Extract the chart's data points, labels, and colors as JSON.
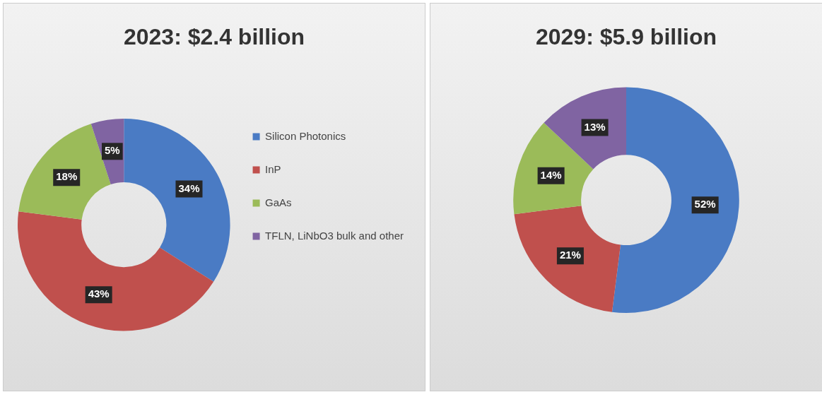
{
  "chart_data": [
    {
      "type": "donut",
      "title": "2023: $2.4 billion",
      "categories": [
        "Silicon Photonics",
        "InP",
        "GaAs",
        "TFLN, LiNbO3 bulk and other"
      ],
      "values": [
        34,
        43,
        18,
        5
      ],
      "colors": [
        "#4a7bc4",
        "#c0504d",
        "#9bbb59",
        "#8064a2"
      ],
      "value_labels": [
        "34%",
        "43%",
        "18%",
        "5%"
      ],
      "legend": "right"
    },
    {
      "type": "donut",
      "title": "2029: $5.9 billion",
      "categories": [
        null,
        null,
        null,
        null
      ],
      "values": [
        52,
        21,
        14,
        13
      ],
      "colors": [
        "#4a7bc4",
        "#c0504d",
        "#9bbb59",
        "#8064a2"
      ],
      "value_labels": [
        "52%",
        "21%",
        "14%",
        "13%"
      ],
      "legend": false
    }
  ]
}
